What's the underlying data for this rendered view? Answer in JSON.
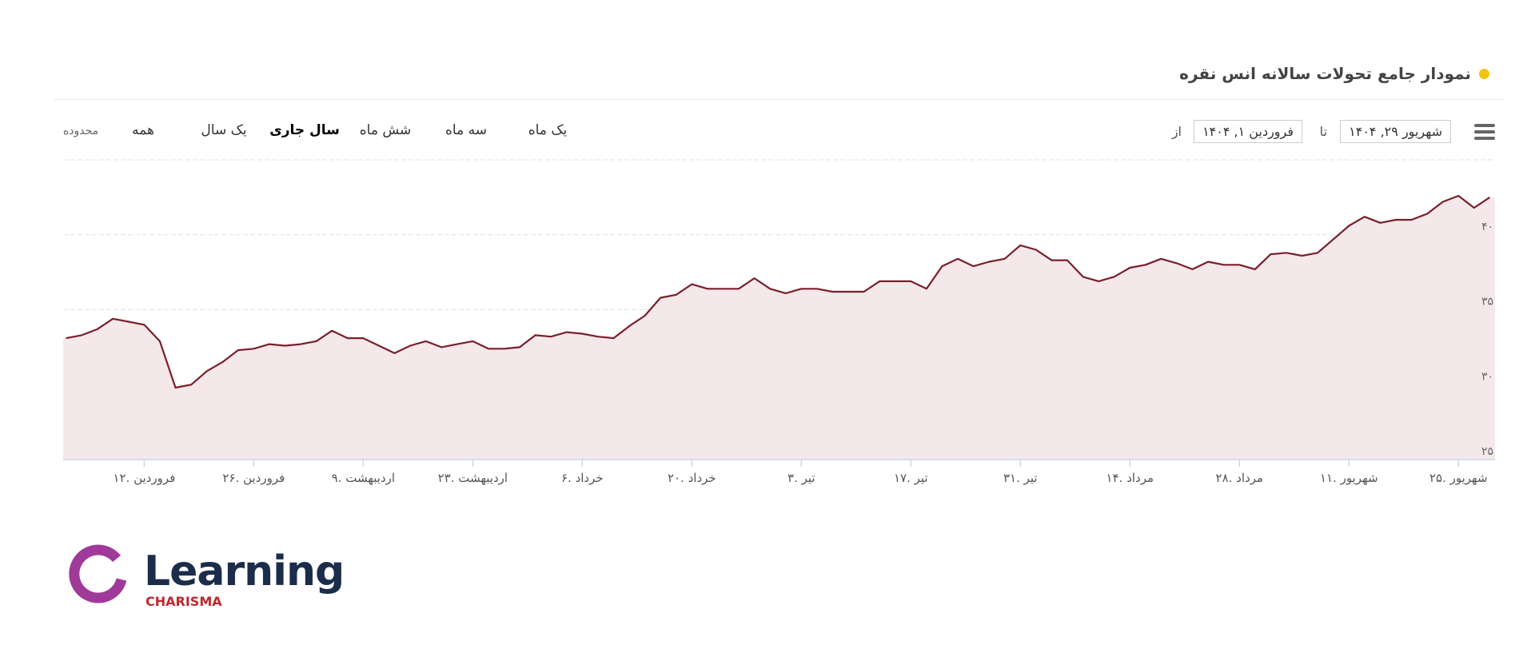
{
  "header": {
    "title": "نمودار جامع تحولات سالانه انس نقره"
  },
  "toolbar": {
    "from_label": "از",
    "from_date": "فروردین ۱, ۱۴۰۴",
    "to_label": "تا",
    "to_date": "شهریور ۲۹, ۱۴۰۴",
    "zoom_label": "محدوده",
    "ranges": [
      "یک ماه",
      "سه ماه",
      "شش ماه",
      "سال جاری",
      "یک سال",
      "همه"
    ],
    "selected_index": 3
  },
  "chart_data": {
    "type": "area",
    "categories": [
      null,
      null,
      null,
      null,
      null,
      "۱۲. فروردین",
      null,
      null,
      null,
      null,
      null,
      null,
      "۲۶. فروردین",
      null,
      null,
      null,
      null,
      null,
      null,
      "۹. اردیبهشت",
      null,
      null,
      null,
      null,
      null,
      null,
      "۲۳. اردیبهشت",
      null,
      null,
      null,
      null,
      null,
      null,
      "۶. خرداد",
      null,
      null,
      null,
      null,
      null,
      null,
      "۲۰. خرداد",
      null,
      null,
      null,
      null,
      null,
      null,
      "۳. تیر",
      null,
      null,
      null,
      null,
      null,
      null,
      "۱۷. تیر",
      null,
      null,
      null,
      null,
      null,
      null,
      "۳۱. تیر",
      null,
      null,
      null,
      null,
      null,
      null,
      "۱۴. مرداد",
      null,
      null,
      null,
      null,
      null,
      null,
      "۲۸. مرداد",
      null,
      null,
      null,
      null,
      null,
      null,
      "۱۱. شهریور",
      null,
      null,
      null,
      null,
      null,
      null,
      "۲۵. شهریور",
      null,
      null
    ],
    "values": [
      33.1,
      33.3,
      33.7,
      34.4,
      34.2,
      34.0,
      32.9,
      29.8,
      30.0,
      30.9,
      31.5,
      32.3,
      32.4,
      32.7,
      32.6,
      32.7,
      32.9,
      33.6,
      33.1,
      33.1,
      32.6,
      32.1,
      32.6,
      32.9,
      32.5,
      32.7,
      32.9,
      32.4,
      32.4,
      32.5,
      33.3,
      33.2,
      33.5,
      33.4,
      33.2,
      33.1,
      33.9,
      34.6,
      35.8,
      36.0,
      36.7,
      36.4,
      36.4,
      36.4,
      37.1,
      36.4,
      36.1,
      36.4,
      36.4,
      36.2,
      36.2,
      36.2,
      36.9,
      36.9,
      36.9,
      36.4,
      37.9,
      38.4,
      37.9,
      38.2,
      38.4,
      39.3,
      39.0,
      38.3,
      38.3,
      37.2,
      36.9,
      37.2,
      37.8,
      38.0,
      38.4,
      38.1,
      37.7,
      38.2,
      38.0,
      38.0,
      37.7,
      38.7,
      38.8,
      38.6,
      38.8,
      39.7,
      40.6,
      41.2,
      40.8,
      41.0,
      41.0,
      41.4,
      42.2,
      42.6,
      41.8,
      42.5
    ],
    "color": "#7a1f2b",
    "area_color": "#f4e8ea",
    "ylim": [
      25,
      45
    ],
    "yticks": [
      {
        "value": 25,
        "label": "۲۵"
      },
      {
        "value": 30,
        "label": "۳۰"
      },
      {
        "value": 35,
        "label": "۳۵"
      },
      {
        "value": 40,
        "label": "۴۰"
      }
    ],
    "grid": true
  },
  "logo": {
    "name": "Learning",
    "tagline": "CHARISMA"
  }
}
